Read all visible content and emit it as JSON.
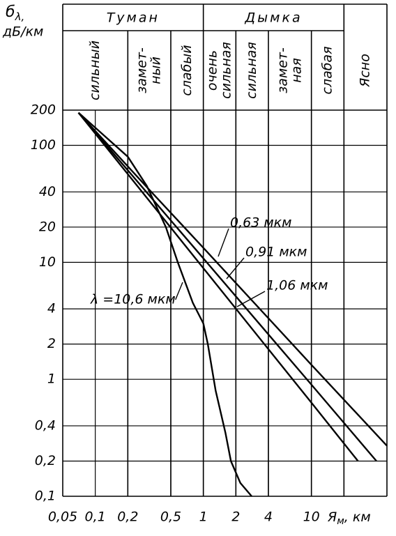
{
  "chart_data": {
    "type": "line",
    "ylabel": {
      "symbol": "б",
      "subscript": "λ,",
      "unit": "дБ/км"
    },
    "xlabel": {
      "symbol": "Я",
      "subscript": "м",
      "unit": ", км"
    },
    "log_x": true,
    "log_y": true,
    "grid": true,
    "xlim": [
      0.05,
      50
    ],
    "ylim": [
      0.1,
      200
    ],
    "xticks": [
      {
        "value": 0.05,
        "label": "0,05"
      },
      {
        "value": 0.1,
        "label": "0,1"
      },
      {
        "value": 0.2,
        "label": "0,2"
      },
      {
        "value": 0.5,
        "label": "0,5"
      },
      1,
      2,
      4,
      10
    ],
    "yticks": [
      {
        "value": 0.1,
        "label": "0,1"
      },
      {
        "value": 0.2,
        "label": "0,2"
      },
      {
        "value": 0.4,
        "label": "0,4"
      },
      1,
      2,
      4,
      10,
      20,
      40,
      100,
      200
    ],
    "groups": [
      {
        "label": "Туман",
        "from": 0.05,
        "to": 1
      },
      {
        "label": "Дымка",
        "from": 1,
        "to": 20
      }
    ],
    "bands": [
      {
        "label": [
          "сильный"
        ],
        "from": 0.05,
        "to": 0.2
      },
      {
        "label": [
          "замет-",
          "ный"
        ],
        "from": 0.2,
        "to": 0.5
      },
      {
        "label": [
          "слабый"
        ],
        "from": 0.5,
        "to": 1
      },
      {
        "label": [
          "очень",
          "сильная"
        ],
        "from": 1,
        "to": 2
      },
      {
        "label": [
          "сильная"
        ],
        "from": 2,
        "to": 4
      },
      {
        "label": [
          "замет-",
          "ная"
        ],
        "from": 4,
        "to": 10
      },
      {
        "label": [
          "слабая"
        ],
        "from": 10,
        "to": 20
      },
      {
        "label": [
          "Ясно"
        ],
        "from": 20,
        "to": 50
      }
    ],
    "series": [
      {
        "name": "0,63 мкм",
        "color": "#000000",
        "x": [
          0.07,
          0.3,
          1,
          10,
          50
        ],
        "values": [
          190,
          44,
          13.3,
          1.33,
          0.27
        ]
      },
      {
        "name": "0,91 мкм",
        "color": "#000000",
        "x": [
          0.07,
          0.3,
          1,
          10,
          40
        ],
        "values": [
          190,
          39.5,
          10.8,
          0.9,
          0.2
        ]
      },
      {
        "name": "1,06 мкм",
        "color": "#000000",
        "x": [
          0.07,
          0.3,
          1,
          10,
          27
        ],
        "values": [
          190,
          35.6,
          8.9,
          0.63,
          0.2
        ]
      },
      {
        "name": "λ =10,6 мкм",
        "color": "#000000",
        "x": [
          0.07,
          0.2,
          0.3,
          0.45,
          0.58,
          0.8,
          1,
          1.1,
          1.3,
          1.6,
          1.8,
          2.2,
          2.8
        ],
        "values": [
          190,
          80,
          45,
          20,
          10,
          4.5,
          3,
          2,
          0.8,
          0.35,
          0.2,
          0.13,
          0.1
        ]
      }
    ]
  }
}
